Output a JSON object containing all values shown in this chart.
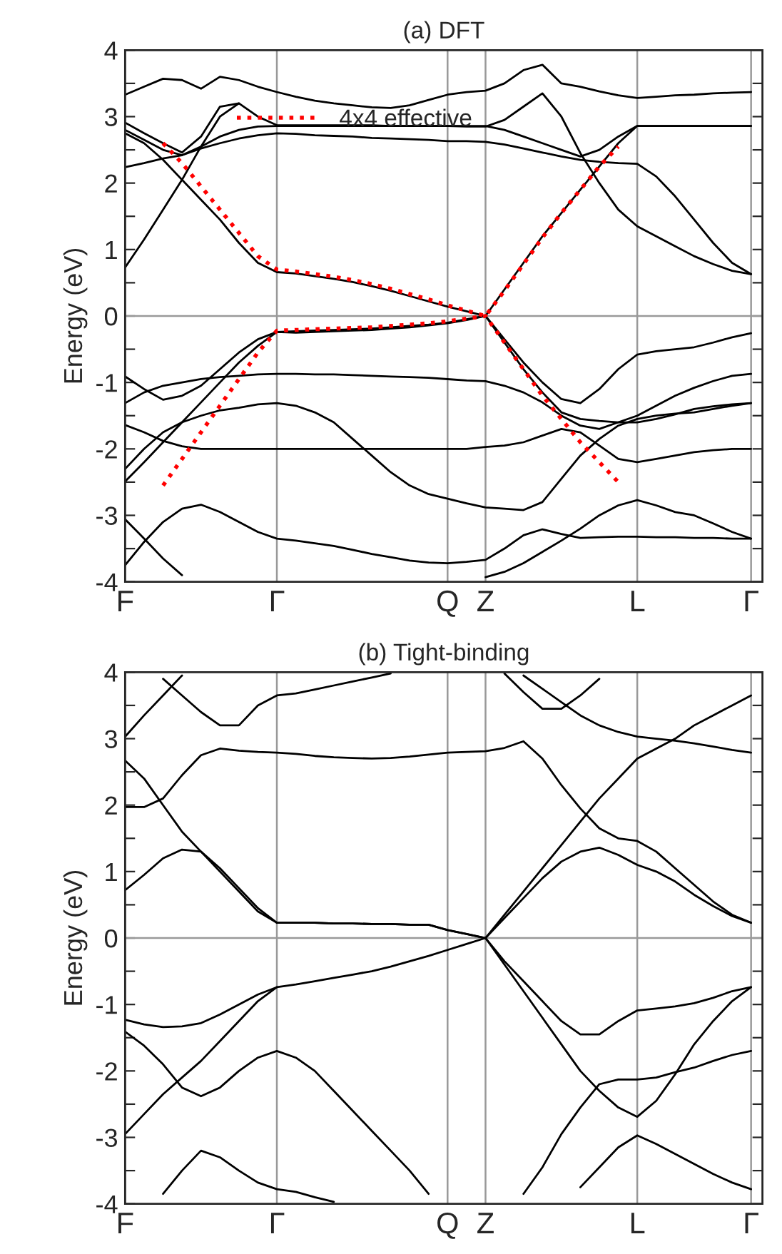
{
  "chart_data": [
    {
      "type": "line",
      "title": "(a) DFT",
      "ylabel": "Energy (eV)",
      "ylim": [
        -4,
        4
      ],
      "categories": [
        "F",
        null,
        null,
        null,
        null,
        null,
        null,
        null,
        "Γ",
        null,
        null,
        null,
        null,
        null,
        null,
        null,
        null,
        "Q",
        null,
        "Z",
        null,
        null,
        null,
        null,
        null,
        null,
        null,
        "L",
        null,
        null,
        null,
        null,
        null,
        "Γ"
      ],
      "yticks": [
        -4,
        {
          "value": -3.5,
          "label": null
        },
        -3,
        {
          "value": -2.5,
          "label": null
        },
        -2,
        {
          "value": -1.5,
          "label": null
        },
        -1,
        {
          "value": -0.5,
          "label": null
        },
        0,
        {
          "value": 0.5,
          "label": null
        },
        1,
        {
          "value": 1.5,
          "label": null
        },
        2,
        {
          "value": 2.5,
          "label": null
        },
        3,
        {
          "value": 3.5,
          "label": null
        },
        4
      ],
      "grid": "x",
      "legend": "top",
      "ref_lines": [
        {
          "axis": "y",
          "value": 0,
          "color": "#999999"
        }
      ],
      "series": [
        {
          "color": "#000000",
          "values": [
            3.33,
            3.45,
            3.57,
            3.55,
            3.42,
            3.6,
            3.55,
            3.45,
            3.37,
            3.3,
            3.24,
            3.2,
            3.17,
            3.14,
            3.13,
            3.17,
            3.25,
            3.33,
            3.37,
            3.39,
            3.5,
            3.7,
            3.78,
            3.5,
            3.45,
            3.38,
            3.32,
            3.28,
            3.3,
            3.32,
            3.33,
            3.35,
            3.36,
            3.37
          ]
        },
        {
          "color": "#000000",
          "values": [
            2.91,
            2.75,
            2.6,
            2.46,
            2.7,
            3.15,
            3.2,
            3.0,
            2.87,
            2.87,
            2.87,
            2.87,
            2.87,
            2.87,
            2.86,
            2.86,
            2.86,
            2.86,
            2.85,
            2.85,
            2.95,
            3.15,
            3.35,
            3.0,
            2.45,
            2.0,
            1.6,
            1.35,
            1.2,
            1.05,
            0.9,
            0.78,
            0.68,
            0.63
          ]
        },
        {
          "color": "#000000",
          "values": [
            2.8,
            2.65,
            2.5,
            2.42,
            2.55,
            2.7,
            2.8,
            2.85,
            2.86,
            2.86,
            2.86,
            2.86,
            2.86,
            2.86,
            2.86,
            2.86,
            2.86,
            2.86,
            2.86,
            2.86,
            2.8,
            2.7,
            2.6,
            2.5,
            2.4,
            2.5,
            2.7,
            2.86,
            2.86,
            2.86,
            2.86,
            2.86,
            2.86,
            2.86
          ]
        },
        {
          "color": "#000000",
          "values": [
            2.24,
            2.3,
            2.37,
            2.42,
            2.52,
            2.6,
            2.67,
            2.72,
            2.75,
            2.74,
            2.72,
            2.71,
            2.7,
            2.68,
            2.67,
            2.66,
            2.65,
            2.63,
            2.63,
            2.62,
            2.58,
            2.52,
            2.46,
            2.4,
            2.35,
            2.32,
            2.3,
            2.29,
            2.1,
            1.8,
            1.45,
            1.1,
            0.8,
            0.63
          ]
        },
        {
          "color": "#000000",
          "values": [
            0.73,
            1.15,
            1.6,
            2.05,
            2.55,
            3.0,
            3.2,
            null,
            null,
            null,
            null,
            null,
            null,
            null,
            null,
            null,
            null,
            null,
            null,
            null,
            null,
            null,
            null,
            null,
            null,
            null,
            null,
            null,
            null,
            null,
            null,
            null,
            null,
            null
          ]
        },
        {
          "color": "#000000",
          "values": [
            2.75,
            2.6,
            2.35,
            2.05,
            1.75,
            1.45,
            1.1,
            0.8,
            0.66,
            0.64,
            0.6,
            0.56,
            0.51,
            0.45,
            0.38,
            0.3,
            0.22,
            0.14,
            0.07,
            0,
            0.4,
            0.8,
            1.2,
            1.55,
            1.9,
            2.25,
            2.6,
            2.86,
            2.86,
            2.86,
            2.86,
            2.86,
            2.86,
            2.86
          ]
        },
        {
          "color": "#000000",
          "values": [
            -2.49,
            -2.2,
            -1.9,
            -1.6,
            -1.3,
            -1.0,
            -0.7,
            -0.45,
            -0.24,
            -0.23,
            -0.22,
            -0.21,
            -0.2,
            -0.19,
            -0.17,
            -0.15,
            -0.13,
            -0.1,
            -0.05,
            0,
            -0.35,
            -0.7,
            -1.0,
            -1.25,
            -1.31,
            -1.1,
            -0.8,
            -0.58,
            -0.53,
            -0.5,
            -0.47,
            -0.4,
            -0.32,
            -0.26
          ]
        },
        {
          "color": "#000000",
          "values": [
            -0.91,
            -1.1,
            -1.26,
            -1.2,
            -1.05,
            -0.8,
            -0.55,
            -0.35,
            -0.24,
            -0.25,
            -0.24,
            -0.23,
            -0.22,
            -0.21,
            -0.19,
            -0.17,
            -0.14,
            -0.11,
            -0.06,
            0,
            -0.4,
            -0.8,
            -1.15,
            -1.45,
            -1.55,
            -1.58,
            -1.6,
            -1.6,
            -1.55,
            -1.48,
            -1.4,
            -1.36,
            -1.33,
            -1.31
          ]
        },
        {
          "color": "#000000",
          "values": [
            -1.31,
            -1.15,
            -1.05,
            -1.0,
            -0.95,
            -0.92,
            -0.9,
            -0.88,
            -0.87,
            -0.87,
            -0.88,
            -0.88,
            -0.89,
            -0.9,
            -0.91,
            -0.92,
            -0.93,
            -0.95,
            -0.97,
            -0.98,
            -1.05,
            -1.15,
            -1.3,
            -1.5,
            -1.65,
            -1.7,
            -1.6,
            -1.5,
            -1.35,
            -1.2,
            -1.08,
            -0.98,
            -0.9,
            -0.87
          ]
        },
        {
          "color": "#000000",
          "values": [
            -1.64,
            -1.75,
            -1.88,
            -1.96,
            -2.0,
            -2.0,
            -2.0,
            -2.0,
            -2.0,
            -2.0,
            -2.0,
            -2.0,
            -2.0,
            -2.0,
            -2.0,
            -2.0,
            -2.0,
            -2.0,
            -2.0,
            -1.97,
            -1.95,
            -1.9,
            -1.8,
            -1.7,
            -1.75,
            -1.95,
            -2.15,
            -2.2,
            -2.15,
            -2.1,
            -2.05,
            -2.02,
            -2.0,
            -2.0
          ]
        },
        {
          "color": "#000000",
          "values": [
            -3.75,
            -3.4,
            -3.1,
            -2.9,
            -2.84,
            -2.95,
            -3.1,
            -3.25,
            -3.35,
            -3.38,
            -3.42,
            -3.46,
            -3.52,
            -3.58,
            -3.63,
            -3.68,
            -3.71,
            -3.72,
            -3.7,
            -3.67,
            -3.5,
            -3.3,
            -3.21,
            -3.28,
            -3.34,
            -3.33,
            -3.32,
            -3.32,
            -3.33,
            -3.33,
            -3.34,
            -3.34,
            -3.35,
            -3.35
          ]
        },
        {
          "color": "#000000",
          "values": [
            -3.06,
            -3.35,
            -3.65,
            -3.9,
            null,
            null,
            null,
            null,
            null,
            null,
            null,
            null,
            null,
            null,
            null,
            null,
            null,
            null,
            null,
            -3.93,
            -3.85,
            -3.72,
            -3.55,
            -3.38,
            -3.2,
            -3.0,
            -2.85,
            -2.77,
            -2.85,
            -2.95,
            -3.0,
            -3.12,
            -3.25,
            -3.35
          ]
        },
        {
          "color": "#000000",
          "values": [
            -2.3,
            -2.0,
            -1.75,
            -1.6,
            -1.5,
            -1.42,
            -1.38,
            -1.33,
            -1.31,
            -1.35,
            -1.45,
            -1.6,
            -1.85,
            -2.1,
            -2.35,
            -2.55,
            -2.68,
            -2.75,
            -2.82,
            -2.88,
            -2.9,
            -2.92,
            -2.8,
            -2.45,
            -2.1,
            -1.85,
            -1.65,
            -1.55,
            -1.5,
            -1.47,
            -1.45,
            -1.4,
            -1.35,
            -1.31
          ]
        },
        {
          "name": "4x4 effective",
          "color": "#ff0000",
          "line_style": "dotted",
          "values": [
            null,
            null,
            2.6,
            2.3,
            1.95,
            1.6,
            1.25,
            0.9,
            0.7,
            0.67,
            0.63,
            0.59,
            0.54,
            0.48,
            0.41,
            0.33,
            0.25,
            0.16,
            0.08,
            0,
            0.38,
            0.78,
            1.18,
            1.55,
            1.9,
            2.25,
            2.55,
            null,
            null,
            null,
            null,
            null,
            null,
            null
          ]
        },
        {
          "color": "#ff0000",
          "line_style": "dotted",
          "values": [
            null,
            null,
            -2.55,
            -2.15,
            -1.75,
            -1.35,
            -0.95,
            -0.55,
            -0.22,
            -0.21,
            -0.2,
            -0.19,
            -0.18,
            -0.17,
            -0.15,
            -0.13,
            -0.11,
            -0.08,
            -0.04,
            0,
            -0.4,
            -0.8,
            -1.2,
            -1.55,
            -1.9,
            -2.2,
            -2.5,
            null,
            null,
            null,
            null,
            null,
            null,
            null
          ]
        }
      ]
    },
    {
      "type": "line",
      "title": "(b) Tight-binding",
      "ylabel": "Energy (eV)",
      "ylim": [
        -4,
        4
      ],
      "categories": [
        "F",
        null,
        null,
        null,
        null,
        null,
        null,
        null,
        "Γ",
        null,
        null,
        null,
        null,
        null,
        null,
        null,
        null,
        "Q",
        null,
        "Z",
        null,
        null,
        null,
        null,
        null,
        null,
        null,
        "L",
        null,
        null,
        null,
        null,
        null,
        "Γ"
      ],
      "yticks": [
        -4,
        {
          "value": -3.5,
          "label": null
        },
        -3,
        {
          "value": -2.5,
          "label": null
        },
        -2,
        {
          "value": -1.5,
          "label": null
        },
        -1,
        {
          "value": -0.5,
          "label": null
        },
        0,
        {
          "value": 0.5,
          "label": null
        },
        1,
        {
          "value": 1.5,
          "label": null
        },
        2,
        {
          "value": 2.5,
          "label": null
        },
        3,
        {
          "value": 3.5,
          "label": null
        },
        4
      ],
      "grid": "x",
      "ref_lines": [
        {
          "axis": "y",
          "value": 0,
          "color": "#999999"
        }
      ],
      "series": [
        {
          "color": "#000000",
          "values": [
            2.67,
            2.4,
            2.0,
            1.6,
            1.3,
            1.0,
            0.7,
            0.4,
            0.23,
            0.23,
            0.23,
            0.22,
            0.22,
            0.21,
            0.21,
            0.2,
            0.2,
            0.12,
            0.06,
            0,
            0.35,
            0.7,
            1.05,
            1.4,
            1.75,
            2.1,
            2.4,
            2.7,
            2.85,
            3.0,
            3.2,
            3.35,
            3.5,
            3.65
          ]
        },
        {
          "color": "#000000",
          "values": [
            0.72,
            0.95,
            1.2,
            1.33,
            1.3,
            1.05,
            0.75,
            0.45,
            0.23,
            0.23,
            0.23,
            0.22,
            0.22,
            0.21,
            0.21,
            0.2,
            0.2,
            0.12,
            0.06,
            0,
            0.3,
            0.6,
            0.9,
            1.15,
            1.3,
            1.36,
            1.25,
            1.1,
            1.0,
            0.85,
            0.65,
            0.48,
            0.33,
            0.23
          ]
        },
        {
          "color": "#000000",
          "values": [
            1.97,
            1.97,
            2.1,
            2.45,
            2.75,
            2.85,
            2.82,
            2.8,
            2.79,
            2.77,
            2.74,
            2.72,
            2.71,
            2.7,
            2.71,
            2.73,
            2.76,
            2.79,
            2.8,
            2.81,
            2.86,
            2.96,
            2.7,
            2.3,
            1.95,
            1.65,
            1.5,
            1.46,
            1.3,
            1.05,
            0.8,
            0.55,
            0.35,
            0.23
          ]
        },
        {
          "color": "#000000",
          "values": [
            3.03,
            3.35,
            3.65,
            3.95,
            null,
            null,
            null,
            null,
            null,
            null,
            null,
            null,
            null,
            null,
            null,
            null,
            null,
            null,
            null,
            null,
            null,
            null,
            null,
            null,
            null,
            null,
            null,
            null,
            null,
            null,
            null,
            null,
            null,
            null
          ]
        },
        {
          "color": "#000000",
          "values": [
            null,
            null,
            3.9,
            3.65,
            3.4,
            3.2,
            3.2,
            3.5,
            3.65,
            3.68,
            3.74,
            3.8,
            3.86,
            3.92,
            3.98,
            null,
            null,
            null,
            null,
            null,
            null,
            null,
            null,
            null,
            null,
            null,
            null,
            null,
            null,
            null,
            null,
            null,
            null,
            null
          ]
        },
        {
          "color": "#000000",
          "values": [
            null,
            null,
            null,
            null,
            null,
            null,
            null,
            null,
            null,
            null,
            null,
            null,
            null,
            null,
            null,
            null,
            null,
            null,
            null,
            null,
            null,
            3.95,
            3.75,
            3.55,
            3.35,
            3.2,
            3.1,
            3.03,
            3.0,
            2.97,
            2.93,
            2.88,
            2.83,
            2.79
          ]
        },
        {
          "color": "#000000",
          "values": [
            null,
            null,
            null,
            null,
            null,
            null,
            null,
            null,
            null,
            null,
            null,
            null,
            null,
            null,
            null,
            null,
            null,
            null,
            null,
            null,
            3.98,
            3.7,
            3.45,
            3.45,
            3.65,
            3.9,
            null,
            null,
            null,
            null,
            null,
            null,
            null,
            null
          ]
        },
        {
          "color": "#000000",
          "values": [
            -1.23,
            -1.3,
            -1.34,
            -1.33,
            -1.28,
            -1.15,
            -1.0,
            -0.85,
            -0.74,
            -0.7,
            -0.65,
            -0.6,
            -0.55,
            -0.5,
            -0.43,
            -0.35,
            -0.27,
            -0.18,
            -0.09,
            0,
            -0.35,
            -0.65,
            -0.95,
            -1.25,
            -1.45,
            -1.45,
            -1.25,
            -1.09,
            -1.06,
            -1.03,
            -0.98,
            -0.9,
            -0.8,
            -0.74
          ]
        },
        {
          "color": "#000000",
          "values": [
            -1.41,
            -1.62,
            -1.9,
            -2.25,
            -2.38,
            -2.25,
            -2.0,
            -1.8,
            -1.7,
            -1.8,
            -2.0,
            -2.3,
            -2.6,
            -2.9,
            -3.2,
            -3.5,
            -3.85,
            null,
            null,
            null,
            null,
            null,
            null,
            null,
            null,
            null,
            null,
            null,
            null,
            null,
            null,
            null,
            null,
            null
          ]
        },
        {
          "color": "#000000",
          "values": [
            -2.95,
            -2.65,
            -2.35,
            -2.1,
            -1.85,
            -1.55,
            -1.25,
            -0.95,
            -0.74,
            null,
            null,
            null,
            null,
            null,
            null,
            null,
            null,
            null,
            null,
            null,
            null,
            null,
            null,
            null,
            null,
            null,
            null,
            null,
            null,
            null,
            null,
            null,
            null,
            null
          ]
        },
        {
          "color": "#000000",
          "values": [
            null,
            null,
            null,
            null,
            null,
            null,
            null,
            null,
            null,
            null,
            null,
            null,
            null,
            null,
            null,
            null,
            null,
            null,
            null,
            0,
            -0.4,
            -0.8,
            -1.2,
            -1.6,
            -2.0,
            -2.3,
            -2.55,
            -2.69,
            -2.45,
            -2.05,
            -1.6,
            -1.25,
            -0.95,
            -0.74
          ]
        },
        {
          "color": "#000000",
          "values": [
            null,
            null,
            null,
            null,
            null,
            null,
            null,
            null,
            null,
            null,
            null,
            null,
            null,
            null,
            null,
            null,
            null,
            null,
            null,
            null,
            null,
            -3.85,
            -3.45,
            -2.95,
            -2.55,
            -2.2,
            -2.13,
            -2.13,
            -2.1,
            -2.02,
            -1.95,
            -1.85,
            -1.76,
            -1.7
          ]
        },
        {
          "color": "#000000",
          "values": [
            null,
            null,
            null,
            null,
            null,
            null,
            null,
            null,
            null,
            null,
            null,
            null,
            null,
            null,
            null,
            null,
            null,
            null,
            null,
            null,
            null,
            null,
            null,
            null,
            -3.75,
            -3.45,
            -3.15,
            -2.97,
            -3.1,
            -3.25,
            -3.4,
            -3.55,
            -3.68,
            -3.78
          ]
        },
        {
          "color": "#000000",
          "values": [
            null,
            null,
            -3.85,
            -3.5,
            -3.2,
            -3.3,
            -3.5,
            -3.68,
            -3.78,
            -3.82,
            -3.9,
            -3.97,
            null,
            null,
            null,
            null,
            null,
            null,
            null,
            null,
            null,
            null,
            null,
            null,
            null,
            null,
            null,
            null,
            null,
            null,
            null,
            null,
            null,
            null
          ]
        }
      ]
    }
  ]
}
